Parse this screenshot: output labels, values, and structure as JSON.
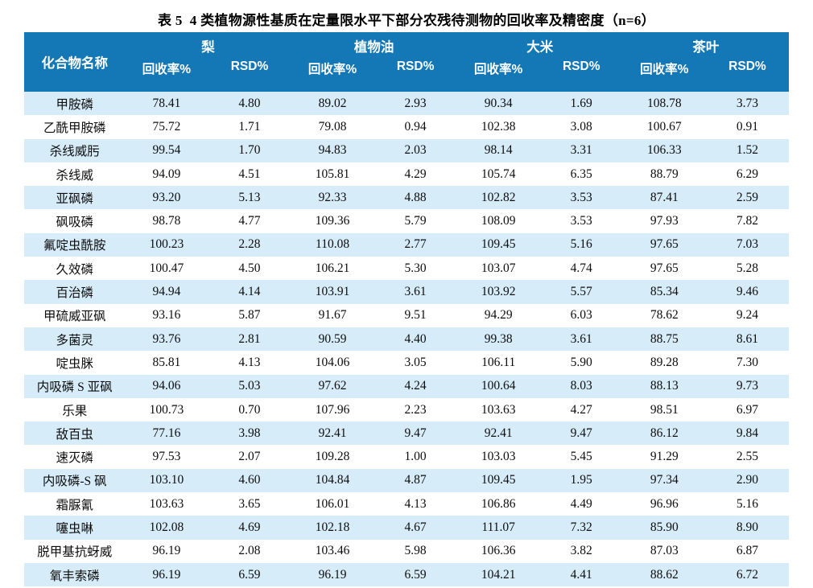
{
  "title": "表 5  4 类植物源性基质在定量限水平下部分农残待测物的回收率及精密度（n=6）",
  "colors": {
    "header_bg": "#1478B6",
    "header_text": "#FFFFFF",
    "stripe_bg": "#D7ECF9",
    "body_text": "#0D0D0D"
  },
  "table": {
    "compound_header": "化合物名称",
    "groups": [
      "梨",
      "植物油",
      "大米",
      "茶叶"
    ],
    "sub_headers": {
      "recovery": "回收率%",
      "rsd": "RSD%"
    },
    "rows": [
      {
        "name": "甲胺磷",
        "values": [
          "78.41",
          "4.80",
          "89.02",
          "2.93",
          "90.34",
          "1.69",
          "108.78",
          "3.73"
        ]
      },
      {
        "name": "乙酰甲胺磷",
        "values": [
          "75.72",
          "1.71",
          "79.08",
          "0.94",
          "102.38",
          "3.08",
          "100.67",
          "0.91"
        ]
      },
      {
        "name": "杀线威肟",
        "values": [
          "99.54",
          "1.70",
          "94.83",
          "2.03",
          "98.14",
          "3.31",
          "106.33",
          "1.52"
        ]
      },
      {
        "name": "杀线威",
        "values": [
          "94.09",
          "4.51",
          "105.81",
          "4.29",
          "105.74",
          "6.35",
          "88.79",
          "6.29"
        ]
      },
      {
        "name": "亚砜磷",
        "values": [
          "93.20",
          "5.13",
          "92.33",
          "4.88",
          "102.82",
          "3.53",
          "87.41",
          "2.59"
        ]
      },
      {
        "name": "砜吸磷",
        "values": [
          "98.78",
          "4.77",
          "109.36",
          "5.79",
          "108.09",
          "3.53",
          "97.93",
          "7.82"
        ]
      },
      {
        "name": "氟啶虫酰胺",
        "values": [
          "100.23",
          "2.28",
          "110.08",
          "2.77",
          "109.45",
          "5.16",
          "97.65",
          "7.03"
        ]
      },
      {
        "name": "久效磷",
        "values": [
          "100.47",
          "4.50",
          "106.21",
          "5.30",
          "103.07",
          "4.74",
          "97.65",
          "5.28"
        ]
      },
      {
        "name": "百治磷",
        "values": [
          "94.94",
          "4.14",
          "103.91",
          "3.61",
          "103.92",
          "5.57",
          "85.34",
          "9.46"
        ]
      },
      {
        "name": "甲硫威亚砜",
        "values": [
          "93.16",
          "5.87",
          "91.67",
          "9.51",
          "94.29",
          "6.03",
          "78.62",
          "9.24"
        ]
      },
      {
        "name": "多菌灵",
        "values": [
          "93.76",
          "2.81",
          "90.59",
          "4.40",
          "99.38",
          "3.61",
          "88.75",
          "8.61"
        ]
      },
      {
        "name": "啶虫脒",
        "values": [
          "85.81",
          "4.13",
          "104.06",
          "3.05",
          "106.11",
          "5.90",
          "89.28",
          "7.30"
        ]
      },
      {
        "name": "内吸磷 S 亚砜",
        "values": [
          "94.06",
          "5.03",
          "97.62",
          "4.24",
          "100.64",
          "8.03",
          "88.13",
          "9.73"
        ]
      },
      {
        "name": "乐果",
        "values": [
          "100.73",
          "0.70",
          "107.96",
          "2.23",
          "103.63",
          "4.27",
          "98.51",
          "6.97"
        ]
      },
      {
        "name": "敌百虫",
        "values": [
          "77.16",
          "3.98",
          "92.41",
          "9.47",
          "92.41",
          "9.47",
          "86.12",
          "9.84"
        ]
      },
      {
        "name": "速灭磷",
        "values": [
          "97.53",
          "2.07",
          "109.28",
          "1.00",
          "103.03",
          "5.45",
          "91.29",
          "2.55"
        ]
      },
      {
        "name": "内吸磷-S 砜",
        "values": [
          "103.10",
          "4.60",
          "104.84",
          "4.87",
          "109.45",
          "1.95",
          "97.34",
          "2.90"
        ]
      },
      {
        "name": "霜脲氰",
        "values": [
          "103.63",
          "3.65",
          "106.01",
          "4.13",
          "106.86",
          "4.49",
          "96.96",
          "5.16"
        ]
      },
      {
        "name": "噻虫啉",
        "values": [
          "102.08",
          "4.69",
          "102.18",
          "4.67",
          "111.07",
          "7.32",
          "85.90",
          "8.90"
        ]
      },
      {
        "name": "脱甲基抗蚜威",
        "values": [
          "96.19",
          "2.08",
          "103.46",
          "5.98",
          "106.36",
          "3.82",
          "87.03",
          "6.87"
        ]
      },
      {
        "name": "氧丰索磷",
        "values": [
          "96.19",
          "6.59",
          "96.19",
          "6.59",
          "104.21",
          "4.41",
          "88.62",
          "6.72"
        ]
      }
    ]
  }
}
